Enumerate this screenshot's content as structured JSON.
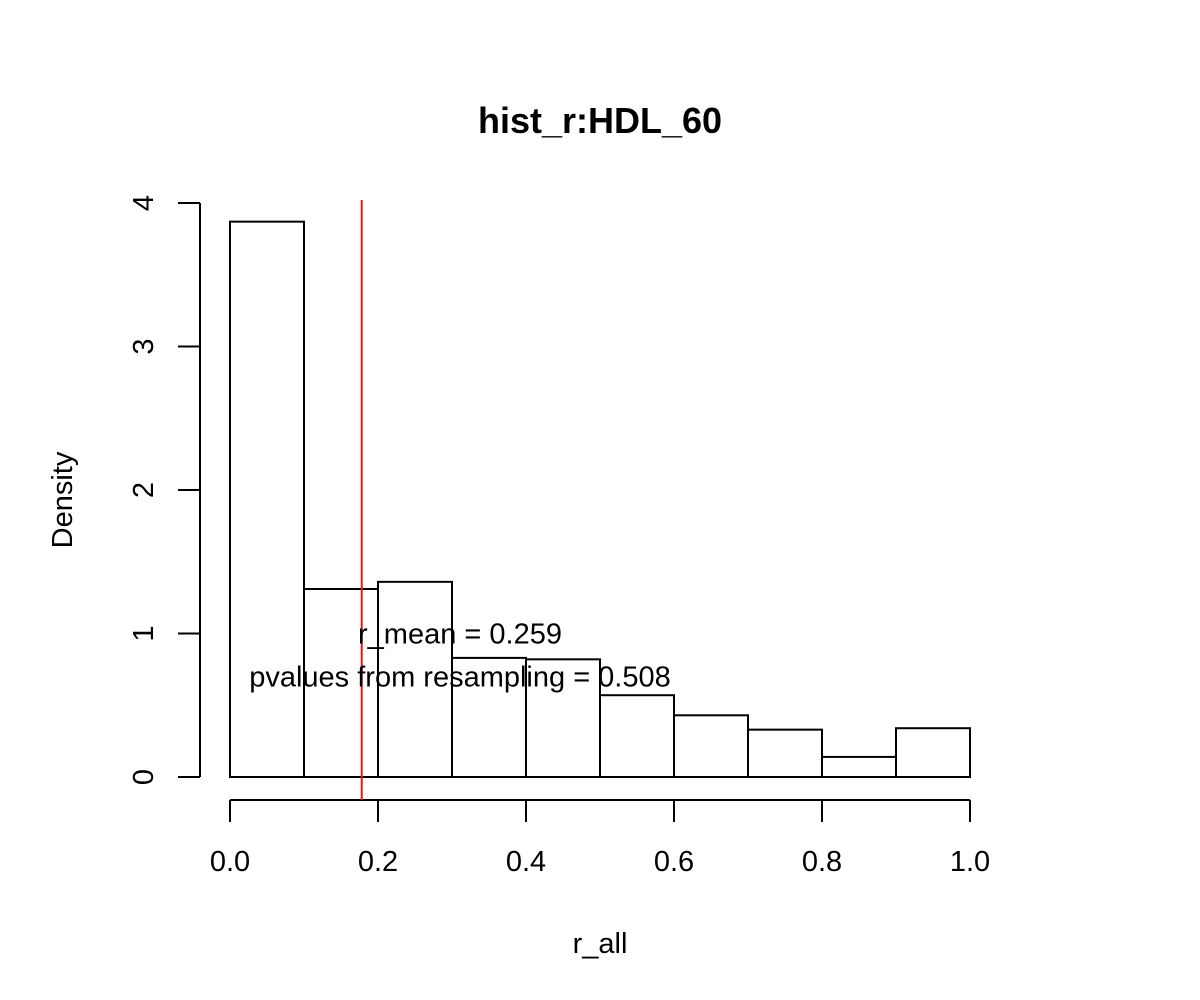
{
  "chart_data": {
    "type": "bar",
    "title": "hist_r:HDL_60",
    "xlabel": "r_all",
    "ylabel": "Density",
    "bin_edges": [
      0.0,
      0.1,
      0.2,
      0.3,
      0.4,
      0.5,
      0.6,
      0.7,
      0.8,
      0.9,
      1.0
    ],
    "values": [
      3.87,
      1.31,
      1.36,
      0.83,
      0.82,
      0.57,
      0.43,
      0.33,
      0.14,
      0.34
    ],
    "xlim": [
      0.0,
      1.0
    ],
    "ylim": [
      0,
      4
    ],
    "x_ticks": [
      0.0,
      0.2,
      0.4,
      0.6,
      0.8,
      1.0
    ],
    "x_tick_labels": [
      "0.0",
      "0.2",
      "0.4",
      "0.6",
      "0.8",
      "1.0"
    ],
    "y_ticks": [
      0,
      1,
      2,
      3,
      4
    ],
    "y_tick_labels": [
      "0",
      "1",
      "2",
      "3",
      "4"
    ],
    "grid": false,
    "reference_line": {
      "x": 0.178,
      "color": "#e31a1c"
    },
    "annotations": [
      {
        "text": "r_mean = 0.259",
        "x": 0.3,
        "y": 1.0
      },
      {
        "text": "pvalues from resampling = 0.508",
        "x": 0.3,
        "y": 0.7
      }
    ],
    "colors": {
      "bar_fill": "#ffffff",
      "bar_stroke": "#000000",
      "reference_line": "#e31a1c"
    }
  }
}
